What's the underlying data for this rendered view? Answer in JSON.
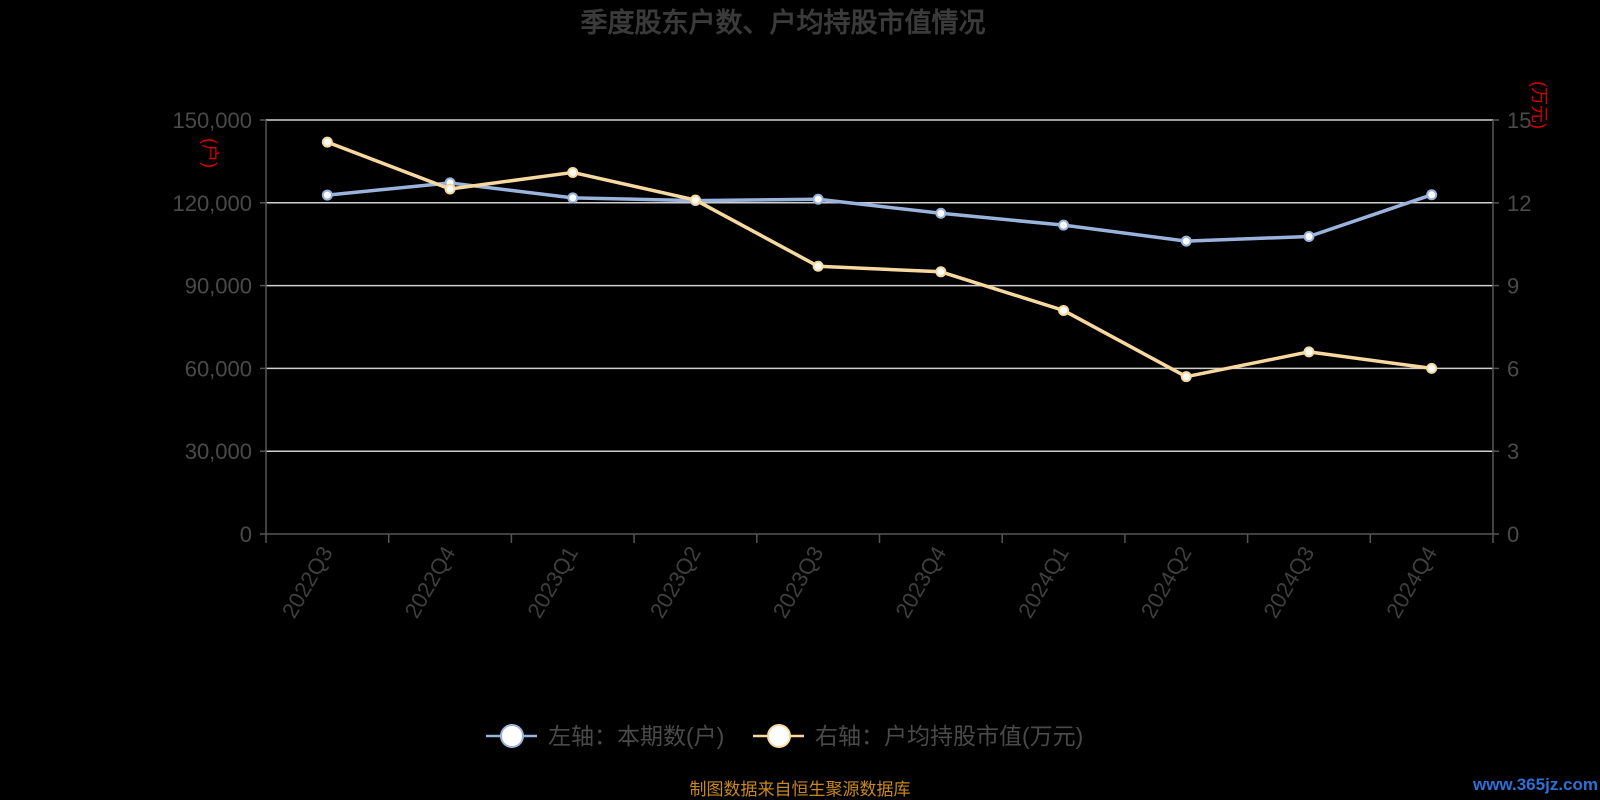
{
  "chart_data": {
    "type": "line",
    "title": "季度股东户数、户均持股市值情况",
    "categories": [
      "2022Q3",
      "2022Q4",
      "2023Q1",
      "2023Q2",
      "2023Q3",
      "2023Q4",
      "2024Q1",
      "2024Q2",
      "2024Q3",
      "2024Q4"
    ],
    "y_left": {
      "unit_label": "(户)",
      "range": [
        0,
        150000
      ],
      "ticks": [
        "0",
        "30,000",
        "60,000",
        "90,000",
        "120,000",
        "150,000"
      ]
    },
    "y_right": {
      "unit_label": "(万元)",
      "range": [
        0,
        15
      ],
      "ticks": [
        "0",
        "3",
        "6",
        "9",
        "12",
        "15"
      ]
    },
    "grid": true,
    "legend_position": "bottom",
    "series": [
      {
        "name": "左轴：本期数(户)",
        "axis": "left",
        "color": "#9ab3dc",
        "values": [
          122800,
          127200,
          121800,
          120800,
          121300,
          116200,
          111900,
          106100,
          107800,
          122900
        ]
      },
      {
        "name": "右轴：户均持股市值(万元)",
        "axis": "right",
        "color": "#f7d9a0",
        "values": [
          14.2,
          12.5,
          13.1,
          12.1,
          9.7,
          9.5,
          8.1,
          5.7,
          6.6,
          6.0
        ]
      }
    ]
  },
  "footer": {
    "source": "制图数据来自恒生聚源数据库",
    "watermark": "www.365jz.com"
  },
  "colors": {
    "background": "#000000",
    "unit_label": "#d10000",
    "source": "#c8881e",
    "watermark": "#2f6fd6"
  }
}
